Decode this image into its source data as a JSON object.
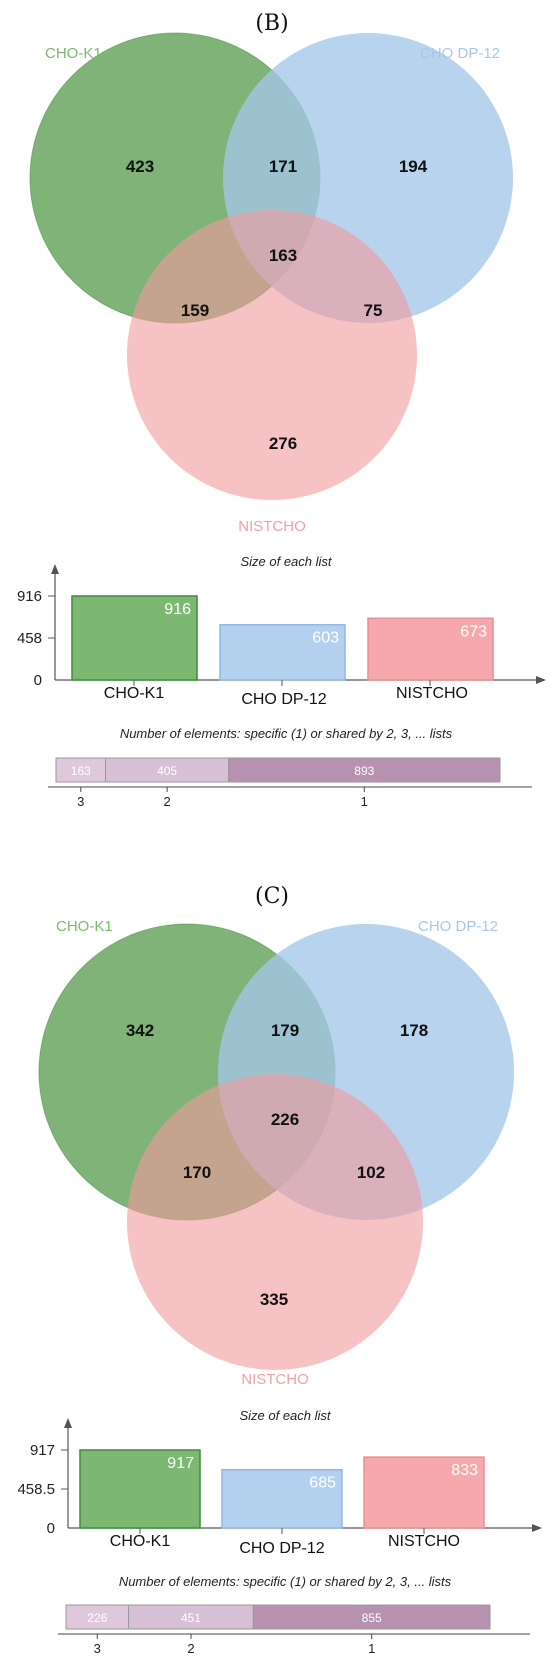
{
  "colors": {
    "set1_fill": "#5c9e52",
    "set1_stroke": "#3f8a3a",
    "set1_bar": "#7db872",
    "set2_fill": "#a4c6e8",
    "set2_bar": "#b3d1ee",
    "set3_fill": "#f19a9c",
    "set3_bar": "#f5a9ad",
    "set1_text": "#7aba6c",
    "set2_text": "#a6c8e8",
    "set3_text": "#f2a0a4",
    "seg3": "#e0c8dc",
    "seg2": "#d7bfd5",
    "seg1": "#b791b0"
  },
  "panels": [
    {
      "label": "(B)",
      "sets": [
        "CHO-K1",
        "CHO DP-12",
        "NISTCHO"
      ],
      "regions": {
        "only1": "423",
        "only2": "194",
        "only3": "276",
        "r12": "171",
        "r13": "159",
        "r23": "75",
        "r123": "163"
      },
      "size_caption": "Size of each list",
      "y_ticks": [
        "916",
        "458",
        "0"
      ],
      "bars": [
        {
          "name": "CHO-K1",
          "value": 916,
          "label": "916"
        },
        {
          "name": "CHO DP-12",
          "value": 603,
          "label": "603"
        },
        {
          "name": "NISTCHO",
          "value": 673,
          "label": "673"
        }
      ],
      "bar_max": 916,
      "shared_caption": "Number of elements: specific (1) or shared by 2, 3, ... lists",
      "segments": [
        {
          "tick": "3",
          "value": 163,
          "label": "163"
        },
        {
          "tick": "2",
          "value": 405,
          "label": "405"
        },
        {
          "tick": "1",
          "value": 893,
          "label": "893"
        }
      ]
    },
    {
      "label": "(C)",
      "sets": [
        "CHO-K1",
        "CHO DP-12",
        "NISTCHO"
      ],
      "regions": {
        "only1": "342",
        "only2": "178",
        "only3": "335",
        "r12": "179",
        "r13": "170",
        "r23": "102",
        "r123": "226"
      },
      "size_caption": "Size of each list",
      "y_ticks": [
        "917",
        "458.5",
        "0"
      ],
      "bars": [
        {
          "name": "CHO-K1",
          "value": 917,
          "label": "917"
        },
        {
          "name": "CHO DP-12",
          "value": 685,
          "label": "685"
        },
        {
          "name": "NISTCHO",
          "value": 833,
          "label": "833"
        }
      ],
      "bar_max": 917,
      "shared_caption": "Number of elements: specific (1) or shared by 2, 3, ... lists",
      "segments": [
        {
          "tick": "3",
          "value": 226,
          "label": "226"
        },
        {
          "tick": "2",
          "value": 451,
          "label": "451"
        },
        {
          "tick": "1",
          "value": 855,
          "label": "855"
        }
      ]
    }
  ]
}
